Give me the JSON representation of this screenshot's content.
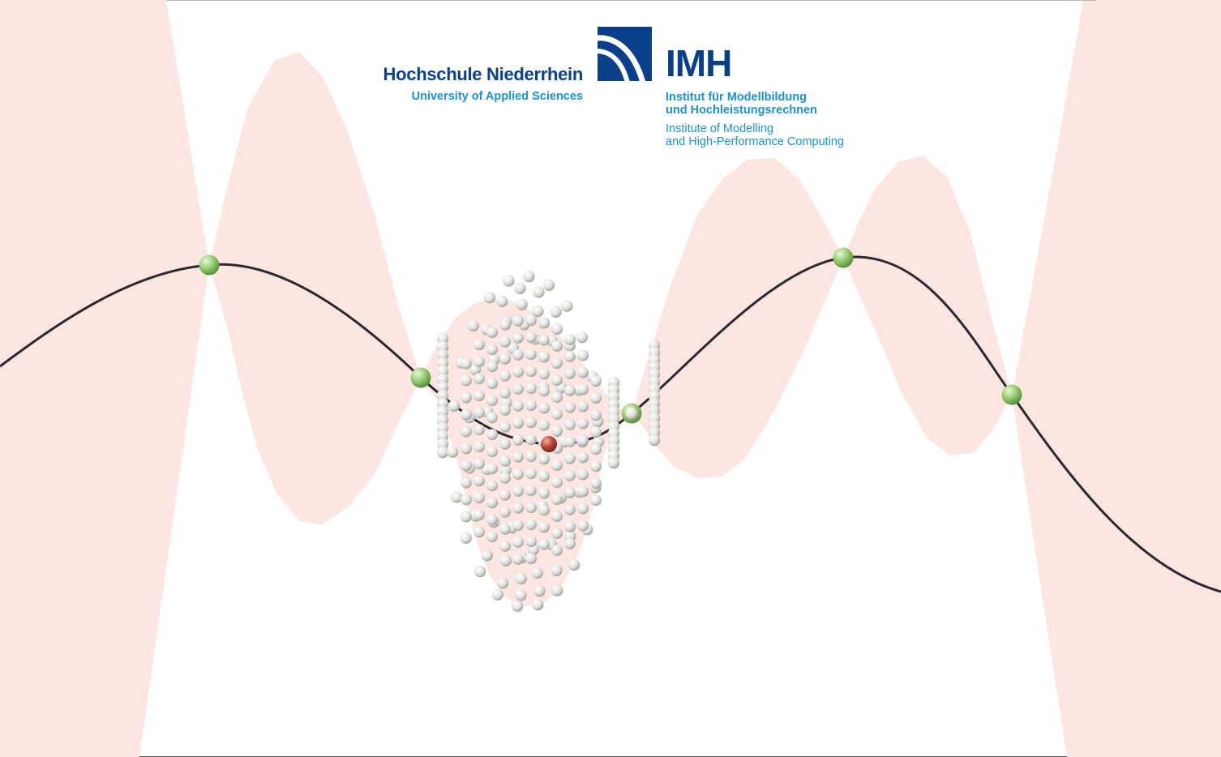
{
  "logo": {
    "university_name": "Hochschule Niederrhein",
    "university_subtitle": "University of Applied Sciences",
    "institute_abbr": "IMH",
    "institute_de_line1": "Institut für Modellbildung",
    "institute_de_line2": "und Hochleistungsrechnen",
    "institute_en_line1": "Institute of Modelling",
    "institute_en_line2": "and High-Performance Computing"
  },
  "colors": {
    "uncertainty_band": "#fde6e2",
    "mean_curve": "#2a2a2e",
    "observation_point": "#8fca6a",
    "sample_point": "#dcdcd8",
    "selected_point": "#b8473a",
    "logo_dark_blue": "#0a3f8c",
    "logo_light_blue": "#1a93d2"
  },
  "icons": {
    "logo_mark": "imh-swoosh-logo"
  }
}
